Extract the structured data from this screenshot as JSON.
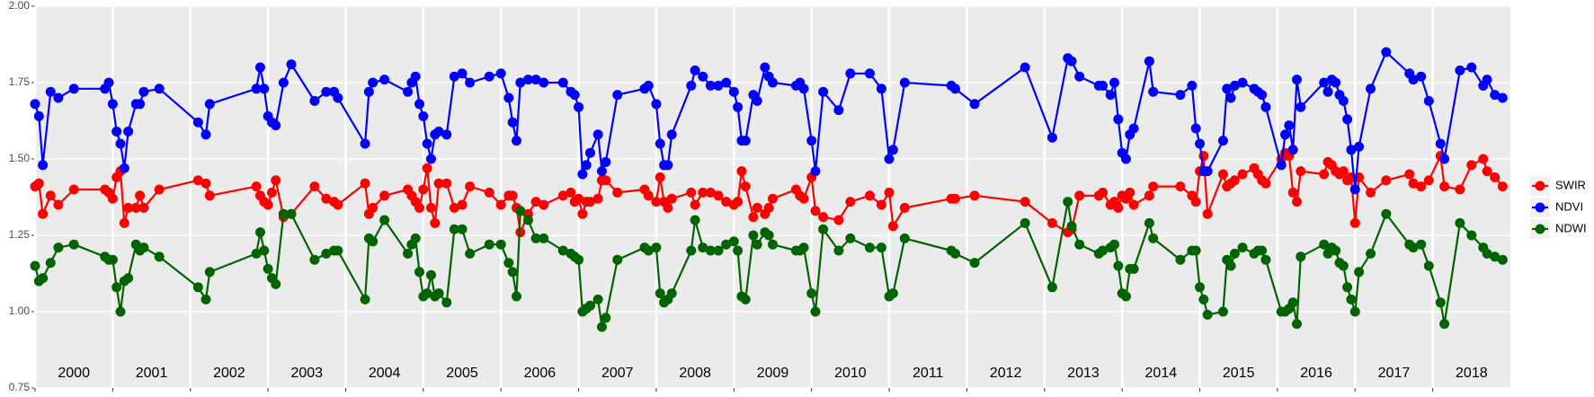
{
  "chart_data": {
    "type": "line",
    "x": [
      2000.0,
      2000.05,
      2000.1,
      2000.2,
      2000.3,
      2000.5,
      2000.9,
      2000.95,
      2001.0,
      2001.05,
      2001.1,
      2001.15,
      2001.2,
      2001.3,
      2001.35,
      2001.4,
      2001.6,
      2002.1,
      2002.2,
      2002.25,
      2002.85,
      2002.9,
      2002.95,
      2003.0,
      2003.05,
      2003.1,
      2003.2,
      2003.3,
      2003.6,
      2003.75,
      2003.85,
      2003.9,
      2004.25,
      2004.3,
      2004.35,
      2004.5,
      2004.8,
      2004.85,
      2004.9,
      2004.95,
      2005.0,
      2005.05,
      2005.1,
      2005.15,
      2005.2,
      2005.3,
      2005.4,
      2005.5,
      2005.6,
      2005.85,
      2006.0,
      2006.1,
      2006.15,
      2006.2,
      2006.25,
      2006.35,
      2006.45,
      2006.55,
      2006.8,
      2006.9,
      2006.95,
      2007.0,
      2007.05,
      2007.1,
      2007.15,
      2007.25,
      2007.3,
      2007.35,
      2007.5,
      2007.85,
      2007.9,
      2008.0,
      2008.05,
      2008.1,
      2008.15,
      2008.2,
      2008.45,
      2008.5,
      2008.6,
      2008.7,
      2008.8,
      2008.9,
      2009.0,
      2009.05,
      2009.1,
      2009.15,
      2009.25,
      2009.3,
      2009.4,
      2009.45,
      2009.5,
      2009.8,
      2009.85,
      2009.9,
      2010.0,
      2010.05,
      2010.15,
      2010.35,
      2010.5,
      2010.75,
      2010.9,
      2011.0,
      2011.05,
      2011.2,
      2011.8,
      2011.85,
      2012.1,
      2012.75,
      2013.1,
      2013.3,
      2013.35,
      2013.45,
      2013.7,
      2013.75,
      2013.85,
      2013.9,
      2013.95,
      2014.0,
      2014.05,
      2014.1,
      2014.15,
      2014.35,
      2014.4,
      2014.75,
      2014.9,
      2014.95,
      2015.0,
      2015.05,
      2015.1,
      2015.3,
      2015.35,
      2015.4,
      2015.45,
      2015.55,
      2015.7,
      2015.75,
      2015.8,
      2015.85,
      2016.05,
      2016.1,
      2016.15,
      2016.2,
      2016.25,
      2016.3,
      2016.6,
      2016.65,
      2016.7,
      2016.75,
      2016.8,
      2016.85,
      2016.9,
      2016.95,
      2017.0,
      2017.05,
      2017.2,
      2017.4,
      2017.7,
      2017.75,
      2017.85,
      2017.95,
      2018.1,
      2018.15,
      2018.35,
      2018.5,
      2018.65,
      2018.7,
      2018.8,
      2018.9
    ],
    "series": [
      {
        "name": "SWIR",
        "color": "#ff0000",
        "values": [
          1.41,
          1.42,
          1.32,
          1.38,
          1.35,
          1.4,
          1.4,
          1.39,
          1.37,
          1.44,
          1.46,
          1.29,
          1.34,
          1.34,
          1.38,
          1.34,
          1.4,
          1.43,
          1.42,
          1.38,
          1.41,
          1.38,
          1.36,
          1.35,
          1.39,
          1.43,
          1.31,
          1.32,
          1.41,
          1.37,
          1.36,
          1.35,
          1.42,
          1.32,
          1.34,
          1.38,
          1.4,
          1.38,
          1.36,
          1.34,
          1.4,
          1.47,
          1.34,
          1.29,
          1.42,
          1.42,
          1.34,
          1.35,
          1.41,
          1.39,
          1.35,
          1.38,
          1.38,
          1.34,
          1.26,
          1.32,
          1.36,
          1.35,
          1.38,
          1.39,
          1.36,
          1.37,
          1.32,
          1.36,
          1.36,
          1.37,
          1.43,
          1.43,
          1.39,
          1.4,
          1.38,
          1.36,
          1.44,
          1.36,
          1.34,
          1.37,
          1.39,
          1.35,
          1.39,
          1.39,
          1.38,
          1.36,
          1.35,
          1.36,
          1.46,
          1.41,
          1.31,
          1.34,
          1.32,
          1.34,
          1.37,
          1.4,
          1.38,
          1.37,
          1.44,
          1.33,
          1.31,
          1.3,
          1.36,
          1.38,
          1.35,
          1.39,
          1.28,
          1.34,
          1.37,
          1.37,
          1.38,
          1.36,
          1.29,
          1.26,
          1.27,
          1.38,
          1.38,
          1.39,
          1.35,
          1.36,
          1.34,
          1.38,
          1.37,
          1.39,
          1.35,
          1.38,
          1.41,
          1.41,
          1.38,
          1.36,
          1.46,
          1.51,
          1.32,
          1.45,
          1.41,
          1.42,
          1.43,
          1.45,
          1.47,
          1.45,
          1.43,
          1.42,
          1.5,
          1.52,
          1.51,
          1.39,
          1.36,
          1.46,
          1.45,
          1.49,
          1.48,
          1.46,
          1.45,
          1.46,
          1.43,
          1.44,
          1.29,
          1.44,
          1.39,
          1.43,
          1.45,
          1.42,
          1.41,
          1.43,
          1.51,
          1.41,
          1.4,
          1.48,
          1.5,
          1.46,
          1.44,
          1.41
        ]
      },
      {
        "name": "NDVI",
        "color": "#0000ff",
        "values": [
          1.68,
          1.64,
          1.48,
          1.72,
          1.7,
          1.73,
          1.73,
          1.75,
          1.68,
          1.59,
          1.55,
          1.47,
          1.59,
          1.68,
          1.68,
          1.72,
          1.73,
          1.62,
          1.58,
          1.68,
          1.73,
          1.8,
          1.73,
          1.64,
          1.62,
          1.61,
          1.75,
          1.81,
          1.69,
          1.72,
          1.72,
          1.7,
          1.55,
          1.72,
          1.75,
          1.76,
          1.72,
          1.75,
          1.77,
          1.68,
          1.64,
          1.55,
          1.5,
          1.58,
          1.59,
          1.58,
          1.77,
          1.78,
          1.75,
          1.77,
          1.78,
          1.7,
          1.62,
          1.56,
          1.75,
          1.76,
          1.76,
          1.75,
          1.75,
          1.72,
          1.71,
          1.67,
          1.45,
          1.48,
          1.52,
          1.58,
          1.46,
          1.49,
          1.71,
          1.73,
          1.74,
          1.68,
          1.55,
          1.48,
          1.48,
          1.58,
          1.74,
          1.79,
          1.77,
          1.74,
          1.74,
          1.75,
          1.72,
          1.67,
          1.56,
          1.56,
          1.71,
          1.69,
          1.8,
          1.77,
          1.75,
          1.74,
          1.75,
          1.73,
          1.56,
          1.46,
          1.72,
          1.66,
          1.78,
          1.78,
          1.73,
          1.5,
          1.53,
          1.75,
          1.74,
          1.73,
          1.68,
          1.8,
          1.57,
          1.83,
          1.82,
          1.77,
          1.74,
          1.74,
          1.71,
          1.75,
          1.63,
          1.52,
          1.5,
          1.58,
          1.6,
          1.82,
          1.72,
          1.71,
          1.74,
          1.6,
          1.55,
          1.46,
          1.46,
          1.56,
          1.73,
          1.7,
          1.74,
          1.75,
          1.73,
          1.72,
          1.71,
          1.67,
          1.48,
          1.58,
          1.61,
          1.53,
          1.76,
          1.67,
          1.75,
          1.72,
          1.76,
          1.75,
          1.71,
          1.69,
          1.63,
          1.53,
          1.4,
          1.54,
          1.73,
          1.85,
          1.78,
          1.76,
          1.77,
          1.69,
          1.55,
          1.5,
          1.79,
          1.8,
          1.74,
          1.76,
          1.71,
          1.7
        ]
      },
      {
        "name": "NDWI",
        "color": "#006400",
        "values": [
          1.15,
          1.1,
          1.11,
          1.16,
          1.21,
          1.22,
          1.18,
          1.17,
          1.17,
          1.08,
          1.0,
          1.1,
          1.11,
          1.22,
          1.2,
          1.21,
          1.18,
          1.08,
          1.04,
          1.13,
          1.19,
          1.26,
          1.2,
          1.14,
          1.11,
          1.09,
          1.32,
          1.32,
          1.17,
          1.19,
          1.2,
          1.2,
          1.04,
          1.24,
          1.23,
          1.3,
          1.19,
          1.22,
          1.24,
          1.13,
          1.05,
          1.06,
          1.12,
          1.05,
          1.06,
          1.03,
          1.27,
          1.27,
          1.19,
          1.22,
          1.22,
          1.16,
          1.13,
          1.05,
          1.33,
          1.3,
          1.24,
          1.24,
          1.2,
          1.19,
          1.18,
          1.17,
          1.0,
          1.01,
          1.02,
          1.04,
          0.95,
          0.98,
          1.17,
          1.21,
          1.2,
          1.21,
          1.06,
          1.03,
          1.04,
          1.06,
          1.2,
          1.3,
          1.21,
          1.2,
          1.2,
          1.22,
          1.23,
          1.2,
          1.05,
          1.04,
          1.25,
          1.22,
          1.26,
          1.25,
          1.22,
          1.2,
          1.2,
          1.21,
          1.06,
          1.0,
          1.27,
          1.2,
          1.24,
          1.21,
          1.21,
          1.05,
          1.06,
          1.24,
          1.2,
          1.19,
          1.16,
          1.29,
          1.08,
          1.36,
          1.28,
          1.22,
          1.19,
          1.2,
          1.21,
          1.22,
          1.15,
          1.06,
          1.05,
          1.14,
          1.14,
          1.29,
          1.24,
          1.17,
          1.2,
          1.2,
          1.08,
          1.04,
          0.99,
          1.0,
          1.17,
          1.15,
          1.19,
          1.21,
          1.19,
          1.2,
          1.2,
          1.17,
          1.0,
          1.0,
          1.01,
          1.03,
          0.96,
          1.18,
          1.22,
          1.19,
          1.21,
          1.2,
          1.16,
          1.15,
          1.08,
          1.04,
          1.0,
          1.13,
          1.19,
          1.32,
          1.22,
          1.21,
          1.22,
          1.15,
          1.03,
          0.96,
          1.29,
          1.25,
          1.21,
          1.19,
          1.18,
          1.17
        ]
      }
    ],
    "xlim": [
      2000,
      2019
    ],
    "xticks": [
      2000,
      2001,
      2002,
      2003,
      2004,
      2005,
      2006,
      2007,
      2008,
      2009,
      2010,
      2011,
      2012,
      2013,
      2014,
      2015,
      2016,
      2017,
      2018
    ],
    "ylim": [
      0.75,
      2.0
    ],
    "yticks": [
      0.75,
      {
        "value": 1.0,
        "label": "1.00"
      },
      1.25,
      {
        "value": 1.5,
        "label": "1.50"
      },
      1.75,
      {
        "value": 2.0,
        "label": "2.00"
      }
    ],
    "grid": true,
    "legend": "right"
  }
}
